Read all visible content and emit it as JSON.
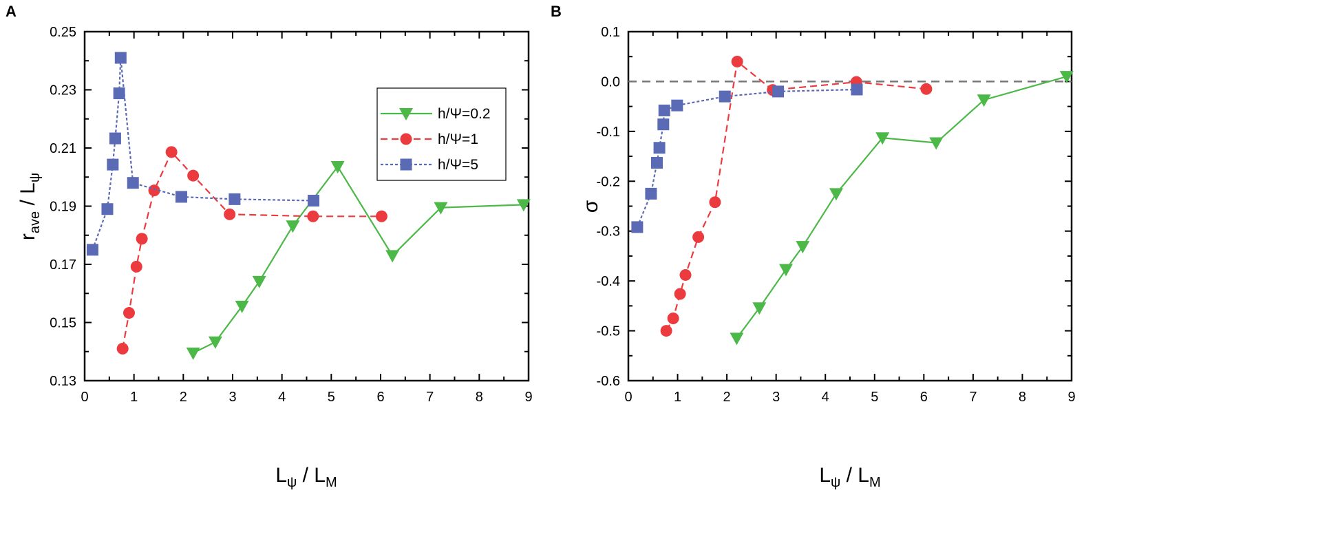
{
  "chart_data": [
    {
      "panel": "A",
      "type": "line",
      "xlabel_main": "L",
      "xlabel_sub": "ψ",
      "xlabel_rest": " / L",
      "xlabel_sub2": "M",
      "ylabel_main": "r",
      "ylabel_sub": "ave",
      "ylabel_rest": " / L",
      "ylabel_sub2": "ψ",
      "xlim": [
        0,
        9
      ],
      "ylim": [
        0.13,
        0.25
      ],
      "xticks": [
        "0",
        "1",
        "2",
        "3",
        "4",
        "5",
        "6",
        "7",
        "8",
        "9"
      ],
      "yticks": [
        "0.13",
        "0.15",
        "0.17",
        "0.19",
        "0.21",
        "0.23",
        "0.25"
      ],
      "legend": {
        "placement": "top-right"
      },
      "series": [
        {
          "name": "h/Ψ=0.2",
          "color": "#4cb848",
          "marker": "triangle-down",
          "line": "solid",
          "x": [
            2.2,
            2.65,
            3.19,
            3.54,
            4.22,
            5.13,
            6.24,
            7.22,
            8.9
          ],
          "y": [
            0.1395,
            0.1433,
            0.1556,
            0.1641,
            0.1832,
            0.2036,
            0.173,
            0.1895,
            0.1905
          ]
        },
        {
          "name": "h/Ψ=1",
          "color": "#ec3b3f",
          "marker": "circle",
          "line": "dashed",
          "x": [
            0.77,
            0.9,
            1.05,
            1.16,
            1.41,
            1.76,
            2.2,
            2.94,
            4.63,
            6.02
          ],
          "y": [
            0.141,
            0.1533,
            0.1692,
            0.1788,
            0.1954,
            0.2086,
            0.2005,
            0.1872,
            0.1865,
            0.1865
          ]
        },
        {
          "name": "h/Ψ=5",
          "color": "#5b6ab4",
          "marker": "square",
          "line": "dotted",
          "x": [
            0.16,
            0.46,
            0.57,
            0.62,
            0.7,
            0.73,
            0.98,
            1.96,
            3.04,
            4.64
          ],
          "y": [
            0.175,
            0.189,
            0.2043,
            0.2133,
            0.2288,
            0.241,
            0.198,
            0.1932,
            0.1924,
            0.1919
          ]
        }
      ]
    },
    {
      "panel": "B",
      "type": "line",
      "xlabel_main": "L",
      "xlabel_sub": "ψ",
      "xlabel_rest": " / L",
      "xlabel_sub2": "M",
      "ylabel": "σ",
      "xlim": [
        0,
        9
      ],
      "ylim": [
        -0.6,
        0.1
      ],
      "xticks": [
        "0",
        "1",
        "2",
        "3",
        "4",
        "5",
        "6",
        "7",
        "8",
        "9"
      ],
      "yticks": [
        "-0.6",
        "-0.5",
        "-0.4",
        "-0.3",
        "-0.2",
        "-0.1",
        "0.0",
        "0.1"
      ],
      "reference_line": 0.0,
      "series": [
        {
          "name": "h/Ψ=0.2",
          "color": "#4cb848",
          "marker": "triangle-down",
          "line": "solid",
          "x": [
            2.2,
            2.66,
            3.2,
            3.54,
            4.22,
            5.16,
            6.25,
            7.22,
            8.9
          ],
          "y": [
            -0.515,
            -0.454,
            -0.377,
            -0.331,
            -0.225,
            -0.113,
            -0.123,
            -0.037,
            0.01
          ]
        },
        {
          "name": "h/Ψ=1",
          "color": "#ec3b3f",
          "marker": "circle",
          "line": "dashed",
          "x": [
            0.77,
            0.91,
            1.05,
            1.16,
            1.42,
            1.76,
            2.21,
            2.93,
            4.63,
            6.05
          ],
          "y": [
            -0.5,
            -0.475,
            -0.426,
            -0.388,
            -0.312,
            -0.242,
            0.04,
            -0.017,
            -0.001,
            -0.015
          ]
        },
        {
          "name": "h/Ψ=5",
          "color": "#5b6ab4",
          "marker": "square",
          "line": "dotted",
          "x": [
            0.18,
            0.46,
            0.58,
            0.63,
            0.71,
            0.73,
            0.99,
            1.96,
            3.04,
            4.64
          ],
          "y": [
            -0.292,
            -0.225,
            -0.163,
            -0.133,
            -0.086,
            -0.058,
            -0.048,
            -0.03,
            -0.02,
            -0.016
          ]
        }
      ]
    }
  ]
}
